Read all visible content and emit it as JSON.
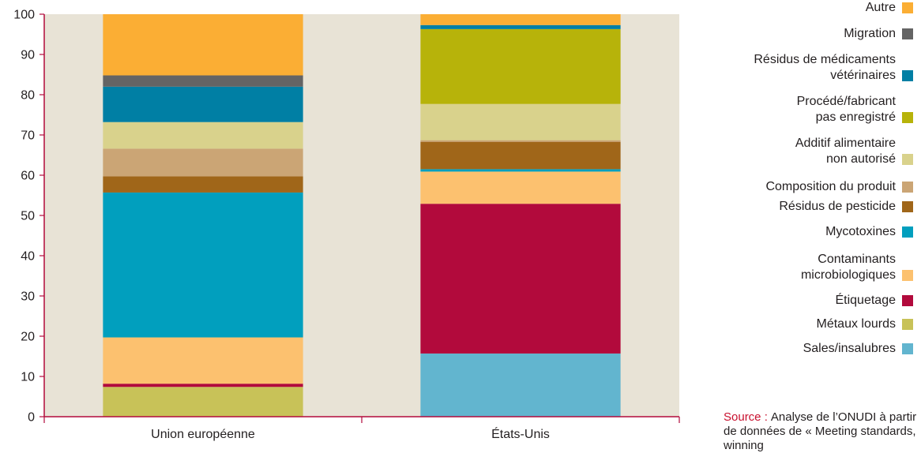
{
  "chart_data": {
    "type": "bar",
    "stacked": true,
    "ylim": [
      0,
      100
    ],
    "yticks": [
      0,
      10,
      20,
      30,
      40,
      50,
      60,
      70,
      80,
      90,
      100
    ],
    "grid": false,
    "legend_position": "right",
    "categories": [
      "Union européenne",
      "États-Unis"
    ],
    "series": [
      {
        "name": "Sales/insalubres",
        "color": "#62b5cf",
        "values": [
          0,
          15.7
        ]
      },
      {
        "name": "Métaux lourds",
        "color": "#c8c258",
        "values": [
          7.4,
          0
        ]
      },
      {
        "name": "Étiquetage",
        "color": "#b20a3c",
        "values": [
          0.8,
          37.2
        ]
      },
      {
        "name": "Contaminants\nmicrobiologiques",
        "color": "#fcc16f",
        "values": [
          11.5,
          8.0
        ]
      },
      {
        "name": "Mycotoxines",
        "color": "#019fbe",
        "values": [
          36.0,
          0.6
        ]
      },
      {
        "name": "Résidus de pesticide",
        "color": "#a06619",
        "values": [
          4.0,
          6.8
        ]
      },
      {
        "name": "Composition du produit",
        "color": "#cba575",
        "values": [
          6.9,
          0.4
        ]
      },
      {
        "name": "Additif alimentaire\nnon autorisé",
        "color": "#d9d28c",
        "values": [
          6.6,
          9.0
        ]
      },
      {
        "name": "Procédé/fabricant\npas enregistré",
        "color": "#b7b30a",
        "values": [
          0,
          18.6
        ]
      },
      {
        "name": "Résidus de médicaments\nvétérinaires",
        "color": "#007fa4",
        "values": [
          8.8,
          1.0
        ]
      },
      {
        "name": "Migration",
        "color": "#646464",
        "values": [
          2.8,
          0
        ]
      },
      {
        "name": "Autre",
        "color": "#fbae34",
        "values": [
          15.2,
          2.7
        ]
      }
    ]
  },
  "source": {
    "label": "Source :",
    "text": "Analyse de l’ONUDI à partir de données de « Meeting standards, winning"
  }
}
